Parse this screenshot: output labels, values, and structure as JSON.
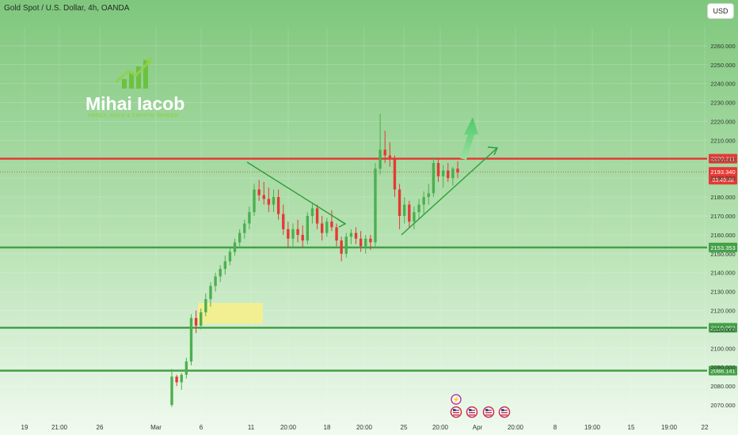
{
  "header": {
    "title": "Gold Spot / U.S. Dollar, 4h, OANDA",
    "currency_button": "USD"
  },
  "logo": {
    "name": "Mihai Iacob",
    "tagline": "FOREX, GOLD & CRYPTO TRADER"
  },
  "colors": {
    "background_top": "#7fc77d",
    "background_bottom": "#f1faf0",
    "up_candle": "#4caf50",
    "down_candle": "#e53935",
    "resistance": "#e53935",
    "support": "#43a047",
    "zone": "#f5ef8c"
  },
  "chart_data": {
    "type": "candlestick",
    "title": "Gold Spot / U.S. Dollar, 4h, OANDA",
    "ylim": [
      2065,
      2270
    ],
    "y_ticks": [
      "2260.000",
      "2250.000",
      "2240.000",
      "2230.000",
      "2220.000",
      "2210.000",
      "2200.000",
      "2190.000",
      "2180.000",
      "2170.000",
      "2160.000",
      "2150.000",
      "2140.000",
      "2130.000",
      "2120.000",
      "2110.000",
      "2100.000",
      "2090.000",
      "2080.000",
      "2070.000"
    ],
    "x_ticks": [
      "19",
      "21:00",
      "26",
      "Mar",
      "6",
      "11",
      "20:00",
      "18",
      "20:00",
      "25",
      "20:00",
      "Apr",
      "20:00",
      "8",
      "19:00",
      "15",
      "19:00",
      "22"
    ],
    "horizontal_levels": [
      {
        "label": "2200.311",
        "value": 2200.311,
        "kind": "resistance"
      },
      {
        "label": "2153.353",
        "value": 2153.353,
        "kind": "support"
      },
      {
        "label": "2110.853",
        "value": 2110.853,
        "kind": "support"
      },
      {
        "label": "2088.141",
        "value": 2088.141,
        "kind": "support"
      }
    ],
    "current_price": {
      "label": "2193.340",
      "value": 2193.34,
      "countdown": "03:49:38"
    },
    "ohlc": [
      [
        2070,
        2089,
        2069,
        2085
      ],
      [
        2085,
        2086,
        2080,
        2082
      ],
      [
        2082,
        2087,
        2078,
        2086
      ],
      [
        2086,
        2095,
        2084,
        2093
      ],
      [
        2093,
        2118,
        2091,
        2116
      ],
      [
        2116,
        2120,
        2108,
        2112
      ],
      [
        2112,
        2121,
        2110,
        2119
      ],
      [
        2119,
        2129,
        2117,
        2126
      ],
      [
        2126,
        2135,
        2122,
        2133
      ],
      [
        2133,
        2140,
        2130,
        2138
      ],
      [
        2138,
        2144,
        2135,
        2142
      ],
      [
        2142,
        2149,
        2139,
        2146
      ],
      [
        2146,
        2153,
        2144,
        2151
      ],
      [
        2151,
        2158,
        2149,
        2156
      ],
      [
        2156,
        2163,
        2154,
        2161
      ],
      [
        2161,
        2168,
        2158,
        2166
      ],
      [
        2166,
        2175,
        2163,
        2172
      ],
      [
        2172,
        2187,
        2170,
        2184
      ],
      [
        2184,
        2189,
        2178,
        2181
      ],
      [
        2181,
        2188,
        2176,
        2179
      ],
      [
        2179,
        2185,
        2172,
        2176
      ],
      [
        2176,
        2184,
        2172,
        2180
      ],
      [
        2180,
        2184,
        2168,
        2171
      ],
      [
        2171,
        2176,
        2160,
        2163
      ],
      [
        2163,
        2167,
        2153,
        2158
      ],
      [
        2158,
        2166,
        2154,
        2163
      ],
      [
        2163,
        2168,
        2156,
        2160
      ],
      [
        2160,
        2165,
        2153,
        2157
      ],
      [
        2157,
        2172,
        2155,
        2170
      ],
      [
        2170,
        2177,
        2166,
        2174
      ],
      [
        2174,
        2176,
        2163,
        2166
      ],
      [
        2166,
        2170,
        2157,
        2161
      ],
      [
        2161,
        2169,
        2159,
        2167
      ],
      [
        2167,
        2173,
        2162,
        2164
      ],
      [
        2164,
        2166,
        2154,
        2157
      ],
      [
        2157,
        2159,
        2146,
        2150
      ],
      [
        2150,
        2161,
        2148,
        2159
      ],
      [
        2159,
        2163,
        2155,
        2161
      ],
      [
        2161,
        2164,
        2155,
        2158
      ],
      [
        2158,
        2162,
        2151,
        2154
      ],
      [
        2154,
        2160,
        2150,
        2158
      ],
      [
        2158,
        2160,
        2152,
        2156
      ],
      [
        2156,
        2198,
        2153,
        2195
      ],
      [
        2195,
        2224,
        2192,
        2205
      ],
      [
        2205,
        2215,
        2198,
        2202
      ],
      [
        2202,
        2209,
        2196,
        2200
      ],
      [
        2200,
        2202,
        2180,
        2184
      ],
      [
        2184,
        2187,
        2163,
        2170
      ],
      [
        2170,
        2180,
        2166,
        2176
      ],
      [
        2176,
        2178,
        2164,
        2167
      ],
      [
        2167,
        2175,
        2163,
        2172
      ],
      [
        2172,
        2179,
        2168,
        2176
      ],
      [
        2176,
        2183,
        2171,
        2180
      ],
      [
        2180,
        2187,
        2176,
        2182
      ],
      [
        2182,
        2201,
        2180,
        2198
      ],
      [
        2198,
        2200,
        2188,
        2191
      ],
      [
        2191,
        2197,
        2185,
        2194
      ],
      [
        2194,
        2198,
        2188,
        2190
      ],
      [
        2190,
        2196,
        2186,
        2195
      ],
      [
        2195,
        2199,
        2190,
        2193
      ]
    ],
    "drawings": {
      "descending_triangle": {
        "from": [
          2193,
          2193
        ],
        "to": [
          2165,
          2164
        ]
      },
      "ascending_line": {
        "from": [
          2157,
          2157
        ],
        "to": [
          2202,
          2202
        ]
      },
      "demand_zone": {
        "low": 2113,
        "high": 2124
      }
    }
  }
}
